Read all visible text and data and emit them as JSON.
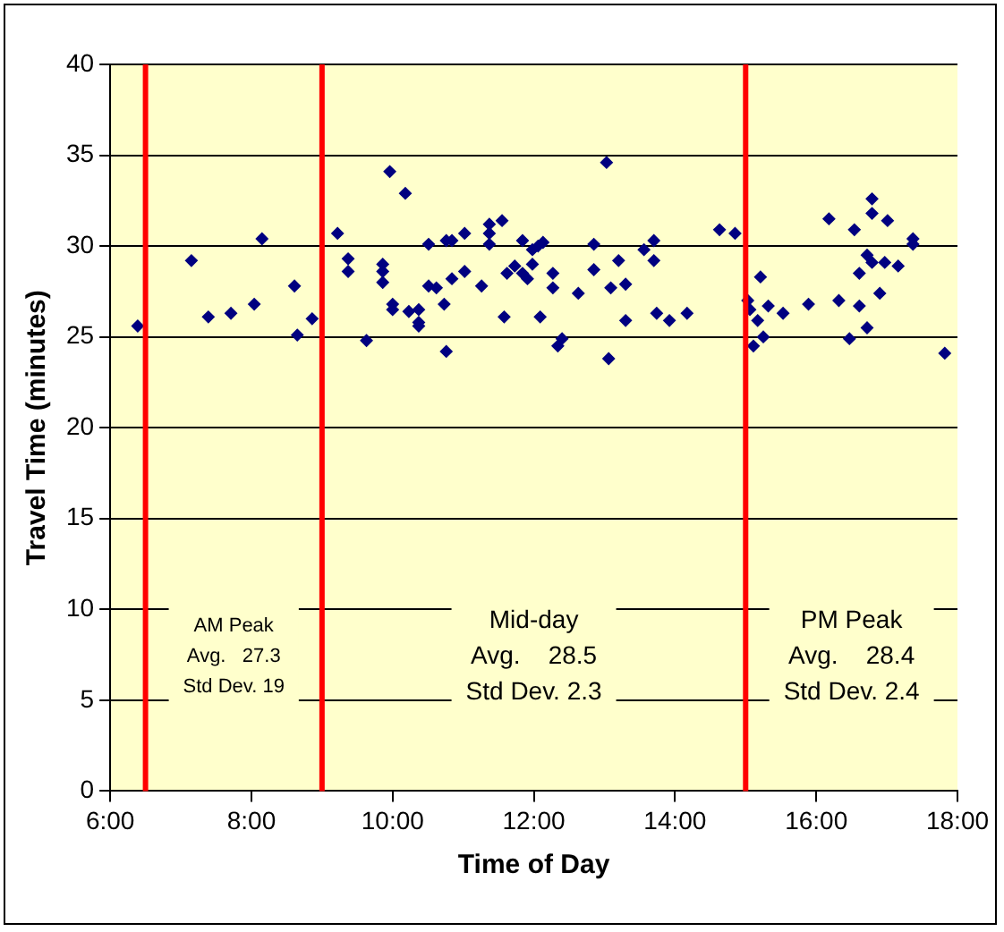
{
  "chart_data": {
    "type": "scatter",
    "xlabel": "Time of Day",
    "ylabel": "Travel Time (minutes)",
    "xlim": [
      6,
      18
    ],
    "xticks": [
      {
        "value": 6,
        "label": "6:00"
      },
      {
        "value": 8,
        "label": "8:00"
      },
      {
        "value": 10,
        "label": "10:00"
      },
      {
        "value": 12,
        "label": "12:00"
      },
      {
        "value": 14,
        "label": "14:00"
      },
      {
        "value": 16,
        "label": "16:00"
      },
      {
        "value": 18,
        "label": "18:00"
      }
    ],
    "ylim": [
      0,
      40
    ],
    "yticks": [
      0,
      5,
      10,
      15,
      20,
      25,
      30,
      35,
      40
    ],
    "grid": "y",
    "legend": false,
    "marker": "diamond",
    "series": [
      {
        "color": "#000080",
        "x": [
          6.39,
          7.15,
          7.39,
          7.71,
          8.04,
          8.15,
          8.61,
          8.65,
          8.86,
          9.22,
          9.37,
          9.37,
          9.63,
          9.86,
          9.86,
          9.86,
          9.96,
          10.0,
          10.0,
          10.18,
          10.23,
          10.37,
          10.37,
          10.37,
          10.51,
          10.51,
          10.62,
          10.73,
          10.76,
          10.76,
          10.84,
          10.84,
          11.02,
          11.02,
          11.26,
          11.37,
          11.37,
          11.37,
          11.55,
          11.58,
          11.62,
          11.73,
          11.84,
          11.84,
          11.91,
          11.98,
          11.98,
          12.06,
          12.13,
          12.09,
          12.27,
          12.27,
          12.34,
          12.4,
          12.63,
          12.85,
          12.85,
          13.03,
          13.06,
          13.09,
          13.2,
          13.3,
          13.3,
          13.56,
          13.7,
          13.7,
          13.74,
          13.92,
          14.17,
          14.63,
          14.85,
          15.03,
          15.06,
          15.11,
          15.17,
          15.21,
          15.25,
          15.32,
          15.53,
          15.89,
          16.18,
          16.32,
          16.47,
          16.54,
          16.61,
          16.61,
          16.72,
          16.72,
          16.79,
          16.79,
          16.79,
          16.9,
          16.97,
          17.01,
          17.16,
          17.37,
          17.37,
          17.82
        ],
        "values": [
          25.6,
          29.2,
          26.1,
          26.3,
          26.8,
          30.4,
          27.8,
          25.1,
          26.0,
          30.7,
          29.3,
          28.6,
          24.8,
          29.0,
          28.6,
          28.0,
          34.1,
          26.8,
          26.5,
          32.9,
          26.4,
          26.5,
          25.8,
          25.6,
          30.1,
          27.8,
          27.7,
          26.8,
          24.2,
          30.3,
          30.3,
          28.2,
          30.7,
          28.6,
          27.8,
          31.2,
          30.7,
          30.1,
          31.4,
          26.1,
          28.5,
          28.9,
          30.3,
          28.5,
          28.2,
          29.8,
          29.0,
          30.0,
          30.2,
          26.1,
          28.5,
          27.7,
          24.5,
          24.9,
          27.4,
          30.1,
          28.7,
          34.6,
          23.8,
          27.7,
          29.2,
          27.9,
          25.9,
          29.8,
          30.3,
          29.2,
          26.3,
          25.9,
          26.3,
          30.9,
          30.7,
          27.0,
          26.5,
          24.5,
          25.9,
          28.3,
          25.0,
          26.7,
          26.3,
          26.8,
          31.5,
          27.0,
          24.9,
          30.9,
          28.5,
          26.7,
          29.5,
          25.5,
          32.6,
          31.8,
          29.1,
          27.4,
          29.1,
          31.4,
          28.9,
          30.4,
          30.1,
          24.1
        ]
      }
    ],
    "ref_lines": [
      {
        "axis": "x",
        "value": 6.5,
        "color": "#ff0000"
      },
      {
        "axis": "x",
        "value": 9,
        "color": "#ff0000"
      },
      {
        "axis": "x",
        "value": 15,
        "color": "#ff0000"
      }
    ],
    "annotations": [
      "AM Peak\nAvg.   27.3\nStd Dev. 19",
      "Mid-day\nAvg.    28.5\nStd Dev. 2.3",
      "PM Peak\nAvg.    28.4\nStd Dev. 2.4"
    ]
  }
}
